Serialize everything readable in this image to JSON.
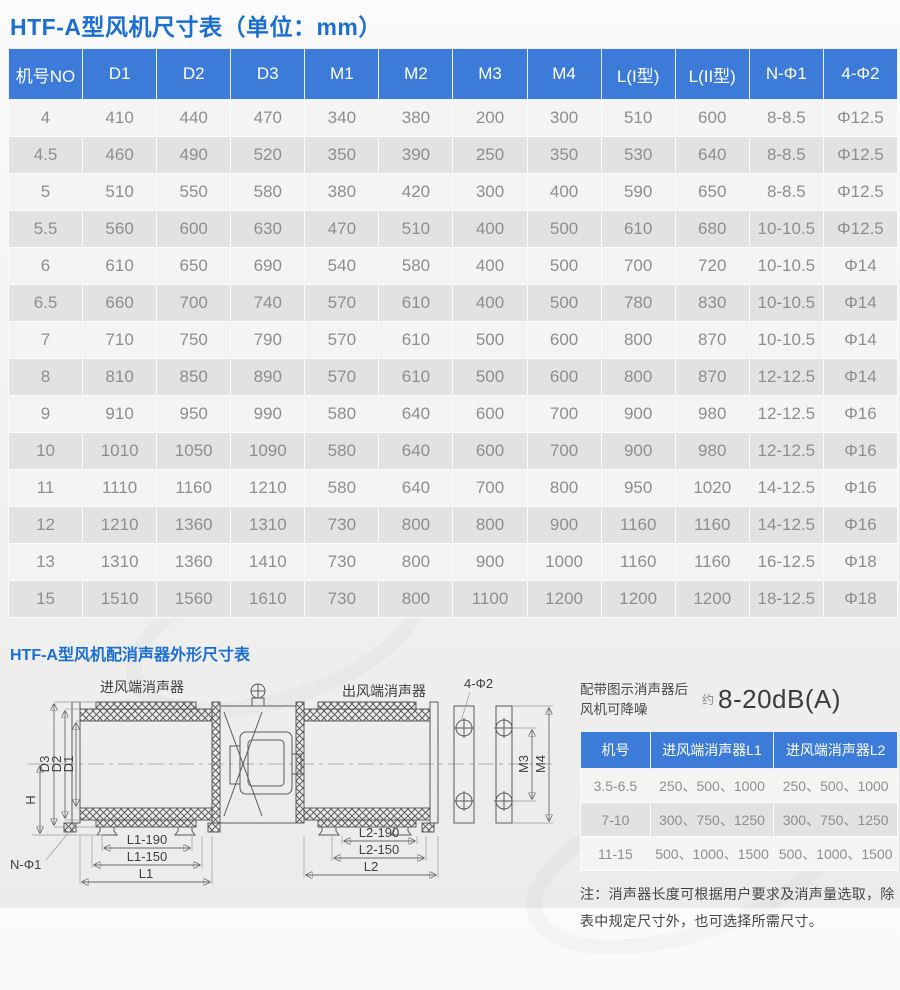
{
  "page": {
    "title": "HTF-A型风机尺寸表（单位：mm）",
    "subtitle": "HTF-A型风机配消声器外形尺寸表"
  },
  "colors": {
    "header_blue": "#3c7cd8",
    "title_blue": "#1b6fd3",
    "row_light": "#f4f4f3",
    "row_dark": "#e2e2e1",
    "cell_text": "#8e8e8e"
  },
  "main_table": {
    "headers": [
      "机号NO",
      "D1",
      "D2",
      "D3",
      "M1",
      "M2",
      "M3",
      "M4",
      "L(I型)",
      "L(II型)",
      "N-Φ1",
      "4-Φ2"
    ],
    "rows": [
      [
        "4",
        "410",
        "440",
        "470",
        "340",
        "380",
        "200",
        "300",
        "510",
        "600",
        "8-8.5",
        "Φ12.5"
      ],
      [
        "4.5",
        "460",
        "490",
        "520",
        "350",
        "390",
        "250",
        "350",
        "530",
        "640",
        "8-8.5",
        "Φ12.5"
      ],
      [
        "5",
        "510",
        "550",
        "580",
        "380",
        "420",
        "300",
        "400",
        "590",
        "650",
        "8-8.5",
        "Φ12.5"
      ],
      [
        "5.5",
        "560",
        "600",
        "630",
        "470",
        "510",
        "400",
        "500",
        "610",
        "680",
        "10-10.5",
        "Φ12.5"
      ],
      [
        "6",
        "610",
        "650",
        "690",
        "540",
        "580",
        "400",
        "500",
        "700",
        "720",
        "10-10.5",
        "Φ14"
      ],
      [
        "6.5",
        "660",
        "700",
        "740",
        "570",
        "610",
        "400",
        "500",
        "780",
        "830",
        "10-10.5",
        "Φ14"
      ],
      [
        "7",
        "710",
        "750",
        "790",
        "570",
        "610",
        "500",
        "600",
        "800",
        "870",
        "10-10.5",
        "Φ14"
      ],
      [
        "8",
        "810",
        "850",
        "890",
        "570",
        "610",
        "500",
        "600",
        "800",
        "870",
        "12-12.5",
        "Φ14"
      ],
      [
        "9",
        "910",
        "950",
        "990",
        "580",
        "640",
        "600",
        "700",
        "900",
        "980",
        "12-12.5",
        "Φ16"
      ],
      [
        "10",
        "1010",
        "1050",
        "1090",
        "580",
        "640",
        "600",
        "700",
        "900",
        "980",
        "12-12.5",
        "Φ16"
      ],
      [
        "11",
        "1110",
        "1160",
        "1210",
        "580",
        "640",
        "700",
        "800",
        "950",
        "1020",
        "14-12.5",
        "Φ16"
      ],
      [
        "12",
        "1210",
        "1360",
        "1310",
        "730",
        "800",
        "800",
        "900",
        "1160",
        "1160",
        "14-12.5",
        "Φ16"
      ],
      [
        "13",
        "1310",
        "1360",
        "1410",
        "730",
        "800",
        "900",
        "1000",
        "1160",
        "1160",
        "16-12.5",
        "Φ18"
      ],
      [
        "15",
        "1510",
        "1560",
        "1610",
        "730",
        "800",
        "1100",
        "1200",
        "1200",
        "1200",
        "18-12.5",
        "Φ18"
      ]
    ]
  },
  "noise_panel": {
    "line1": "配带图示消声器后",
    "line2": "风机可降噪",
    "approx": "约",
    "value": "8-20dB(A)"
  },
  "silencer_table": {
    "headers": [
      "机号",
      "进风端消声器L1",
      "进风端消声器L2"
    ],
    "rows": [
      [
        "3.5-6.5",
        "250、500、1000",
        "250、500、1000"
      ],
      [
        "7-10",
        "300、750、1250",
        "300、750、1250"
      ],
      [
        "11-15",
        "500、1000、1500",
        "500、1000、1500"
      ]
    ]
  },
  "note": {
    "line1": "注：消声器长度可根据用户要求及消声量选取，除",
    "line2": "表中规定尺寸外，也可选择所需尺寸。"
  },
  "diagram": {
    "inlet_label": "进风端消声器",
    "outlet_label": "出风端消声器",
    "bolt_label": "4-Φ2",
    "d1": "D1",
    "d2": "D2",
    "d3": "D3",
    "h": "H",
    "n_phi1": "N-Φ1",
    "l1_190": "L1-190",
    "l1_150": "L1-150",
    "l1": "L1",
    "l2_190": "L2-190",
    "l2_150": "L2-150",
    "l2": "L2",
    "m3": "M3",
    "m4": "M4"
  }
}
